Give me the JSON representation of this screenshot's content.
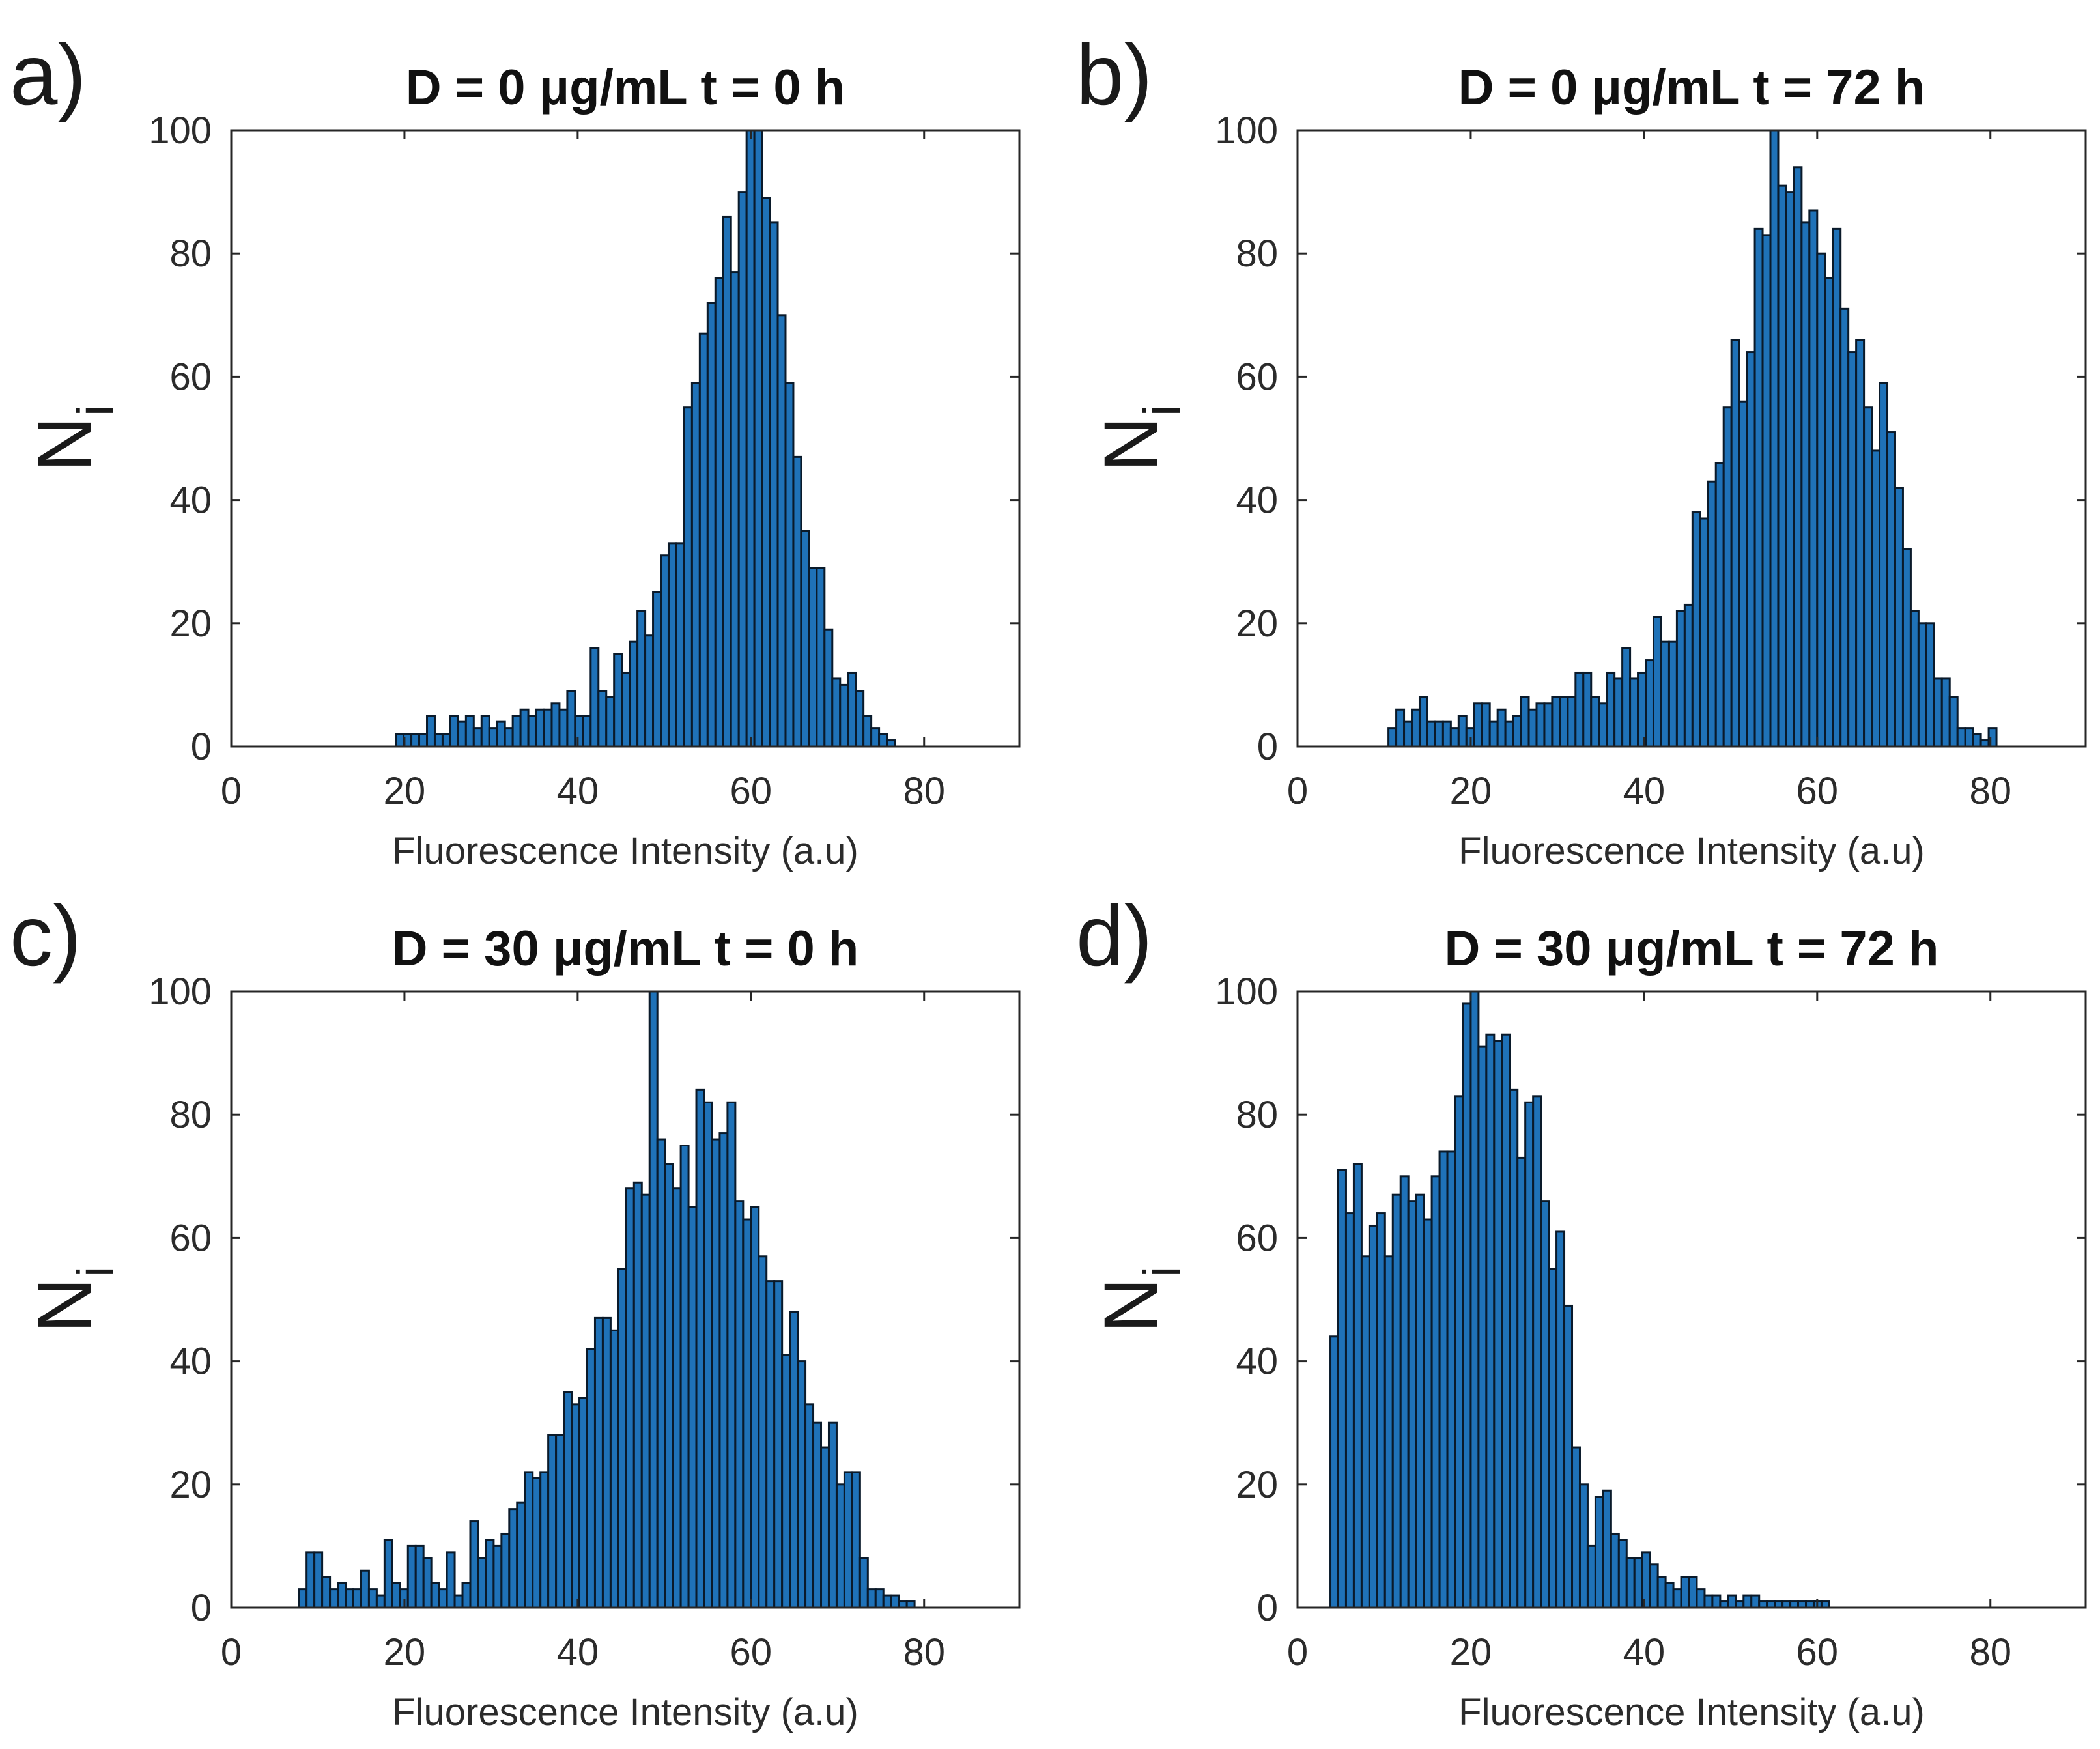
{
  "figure": {
    "colors": {
      "bar_fill": "#1f72b8",
      "bar_edge": "#0a1a2a",
      "axis": "#262626",
      "text": "#1a1a1a"
    }
  },
  "chart_data": [
    {
      "panel_label": "a)",
      "type": "bar",
      "title": "D = 0 μg/mL t = 0 h",
      "xlabel": "Fluorescence Intensity (a.u)",
      "ylabel": "N",
      "ylabel_subscript": "i",
      "xlim": [
        0,
        91
      ],
      "ylim": [
        0,
        100
      ],
      "xticks": [
        0,
        20,
        40,
        60,
        80
      ],
      "yticks": [
        0,
        20,
        40,
        60,
        80,
        100
      ],
      "bin_start": 19,
      "bin_width": 0.9,
      "values": [
        2,
        2,
        2,
        2,
        5,
        2,
        2,
        5,
        4,
        5,
        3,
        5,
        3,
        4,
        3,
        5,
        6,
        5,
        6,
        6,
        7,
        6,
        9,
        5,
        5,
        16,
        9,
        8,
        15,
        12,
        17,
        22,
        18,
        25,
        31,
        33,
        33,
        55,
        59,
        67,
        72,
        76,
        86,
        77,
        90,
        101,
        101,
        89,
        85,
        70,
        59,
        47,
        35,
        29,
        29,
        19,
        11,
        10,
        12,
        9,
        5,
        3,
        2,
        1
      ],
      "counts_visible": true
    },
    {
      "panel_label": "b)",
      "type": "bar",
      "title": "D = 0 μg/mL t = 72 h",
      "xlabel": "Fluorescence Intensity (a.u)",
      "ylabel": "N",
      "ylabel_subscript": "i",
      "xlim": [
        0,
        91
      ],
      "ylim": [
        0,
        100
      ],
      "xticks": [
        0,
        20,
        40,
        60,
        80
      ],
      "yticks": [
        0,
        20,
        40,
        60,
        80,
        100
      ],
      "bin_start": 10.5,
      "bin_width": 0.9,
      "values": [
        3,
        6,
        4,
        6,
        8,
        4,
        4,
        4,
        3,
        5,
        3,
        7,
        7,
        4,
        6,
        4,
        5,
        8,
        6,
        7,
        7,
        8,
        8,
        8,
        12,
        12,
        8,
        7,
        12,
        11,
        16,
        11,
        12,
        14,
        21,
        17,
        17,
        22,
        23,
        38,
        37,
        43,
        46,
        55,
        66,
        56,
        64,
        84,
        83,
        101,
        91,
        90,
        94,
        85,
        87,
        80,
        76,
        84,
        71,
        64,
        66,
        55,
        48,
        59,
        51,
        42,
        32,
        22,
        20,
        20,
        11,
        11,
        8,
        3,
        3,
        2,
        1,
        3
      ],
      "counts_visible": true
    },
    {
      "panel_label": "c)",
      "type": "bar",
      "title": "D = 30 μg/mL t = 0 h",
      "xlabel": "Fluorescence Intensity (a.u)",
      "ylabel": "N",
      "ylabel_subscript": "i",
      "xlim": [
        0,
        91
      ],
      "ylim": [
        0,
        100
      ],
      "xticks": [
        0,
        20,
        40,
        60,
        80
      ],
      "yticks": [
        0,
        20,
        40,
        60,
        80,
        100
      ],
      "bin_start": 7.8,
      "bin_width": 0.9,
      "values": [
        3,
        9,
        9,
        5,
        3,
        4,
        3,
        3,
        6,
        3,
        2,
        11,
        4,
        3,
        10,
        10,
        8,
        4,
        3,
        9,
        2,
        4,
        14,
        8,
        11,
        10,
        12,
        16,
        17,
        22,
        21,
        22,
        28,
        28,
        35,
        33,
        34,
        42,
        47,
        47,
        45,
        55,
        68,
        69,
        67,
        100,
        76,
        72,
        68,
        75,
        65,
        84,
        82,
        76,
        77,
        82,
        66,
        63,
        65,
        57,
        53,
        53,
        41,
        48,
        40,
        33,
        30,
        26,
        30,
        20,
        22,
        22,
        8,
        3,
        3,
        2,
        2,
        1,
        1
      ],
      "counts_visible": true
    },
    {
      "panel_label": "d)",
      "type": "bar",
      "title": "D = 30 μg/mL t = 72 h",
      "xlabel": "Fluorescence Intensity (a.u)",
      "ylabel": "N",
      "ylabel_subscript": "i",
      "xlim": [
        0,
        91
      ],
      "ylim": [
        0,
        100
      ],
      "xticks": [
        0,
        20,
        40,
        60,
        80
      ],
      "yticks": [
        0,
        20,
        40,
        60,
        80,
        100
      ],
      "bin_start": 3.8,
      "bin_width": 0.9,
      "values": [
        44,
        71,
        64,
        72,
        57,
        62,
        64,
        57,
        67,
        70,
        66,
        67,
        63,
        70,
        74,
        74,
        83,
        98,
        101,
        91,
        93,
        92,
        93,
        84,
        73,
        82,
        83,
        66,
        55,
        61,
        49,
        26,
        20,
        10,
        18,
        19,
        12,
        11,
        8,
        8,
        9,
        7,
        5,
        4,
        3,
        5,
        5,
        3,
        2,
        2,
        1,
        2,
        1,
        2,
        2,
        1,
        1,
        1,
        1,
        1,
        1,
        1,
        1,
        1
      ],
      "counts_visible": true
    }
  ]
}
